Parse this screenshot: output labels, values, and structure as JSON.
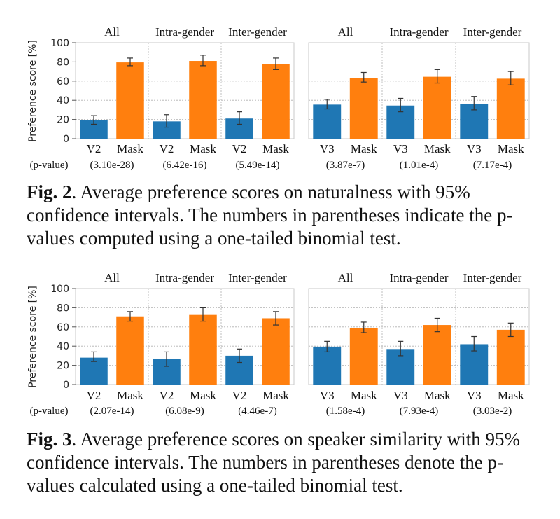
{
  "colors": {
    "blue": "#1f77b4",
    "orange": "#ff7f0e",
    "grid": "#b0b0b0",
    "frame": "#c8c8c8"
  },
  "figures": [
    {
      "fig_label": "Fig. 2",
      "caption": ". Average preference scores on naturalness with 95% confidence intervals. The numbers in parentheses indicate the p-values computed using a one-tailed binomial test."
    },
    {
      "fig_label": "Fig. 3",
      "caption": ". Average preference scores on speaker similarity with 95% confidence intervals. The numbers in parentheses denote the p-values calculated using a one-tailed binomial test."
    }
  ],
  "chart_data": [
    {
      "type": "bar",
      "ylabel": "Preference score [%]",
      "ylim": [
        0,
        100
      ],
      "yticks": [
        0,
        20,
        40,
        60,
        80,
        100
      ],
      "pvalue_row_label": "(p-value)",
      "grid": true,
      "panels": [
        {
          "title": "All",
          "categories": [
            "V2",
            "Mask"
          ],
          "values": [
            19.5,
            79.5
          ],
          "errors": [
            [
              15,
              24
            ],
            [
              76,
              84
            ]
          ],
          "pvalue": "(3.10e-28)"
        },
        {
          "title": "Intra-gender",
          "categories": [
            "V2",
            "Mask"
          ],
          "values": [
            18,
            81
          ],
          "errors": [
            [
              12,
              25
            ],
            [
              76,
              87
            ]
          ],
          "pvalue": "(6.42e-16)"
        },
        {
          "title": "Inter-gender",
          "categories": [
            "V2",
            "Mask"
          ],
          "values": [
            21,
            78
          ],
          "errors": [
            [
              15,
              28
            ],
            [
              72,
              84
            ]
          ],
          "pvalue": "(5.49e-14)"
        },
        {
          "title": "All",
          "categories": [
            "V3",
            "Mask"
          ],
          "values": [
            35.5,
            63.5
          ],
          "errors": [
            [
              31,
              41
            ],
            [
              59,
              69
            ]
          ],
          "pvalue": "(3.87e-7)"
        },
        {
          "title": "Intra-gender",
          "categories": [
            "V3",
            "Mask"
          ],
          "values": [
            34.5,
            64.5
          ],
          "errors": [
            [
              28,
              42
            ],
            [
              58,
              72
            ]
          ],
          "pvalue": "(1.01e-4)"
        },
        {
          "title": "Inter-gender",
          "categories": [
            "V3",
            "Mask"
          ],
          "values": [
            36.5,
            62.5
          ],
          "errors": [
            [
              30,
              44
            ],
            [
              56,
              70
            ]
          ],
          "pvalue": "(7.17e-4)"
        }
      ]
    },
    {
      "type": "bar",
      "ylabel": "Preference score [%]",
      "ylim": [
        0,
        100
      ],
      "yticks": [
        0,
        20,
        40,
        60,
        80,
        100
      ],
      "pvalue_row_label": "(p-value)",
      "grid": true,
      "panels": [
        {
          "title": "All",
          "categories": [
            "V2",
            "Mask"
          ],
          "values": [
            28,
            71
          ],
          "errors": [
            [
              24,
              34
            ],
            [
              66,
              76
            ]
          ],
          "pvalue": "(2.07e-14)"
        },
        {
          "title": "Intra-gender",
          "categories": [
            "V2",
            "Mask"
          ],
          "values": [
            26.5,
            72.5
          ],
          "errors": [
            [
              19,
              34
            ],
            [
              66,
              80
            ]
          ],
          "pvalue": "(6.08e-9)"
        },
        {
          "title": "Inter-gender",
          "categories": [
            "V2",
            "Mask"
          ],
          "values": [
            30,
            69
          ],
          "errors": [
            [
              23,
              37
            ],
            [
              62,
              76
            ]
          ],
          "pvalue": "(4.46e-7)"
        },
        {
          "title": "All",
          "categories": [
            "V3",
            "Mask"
          ],
          "values": [
            39.5,
            59
          ],
          "errors": [
            [
              34,
              45
            ],
            [
              54,
              65
            ]
          ],
          "pvalue": "(1.58e-4)"
        },
        {
          "title": "Intra-gender",
          "categories": [
            "V3",
            "Mask"
          ],
          "values": [
            37,
            62
          ],
          "errors": [
            [
              30,
              45
            ],
            [
              55,
              69
            ]
          ],
          "pvalue": "(7.93e-4)"
        },
        {
          "title": "Inter-gender",
          "categories": [
            "V3",
            "Mask"
          ],
          "values": [
            42,
            57
          ],
          "errors": [
            [
              35,
              50
            ],
            [
              50,
              64
            ]
          ],
          "pvalue": "(3.03e-2)"
        }
      ]
    }
  ]
}
